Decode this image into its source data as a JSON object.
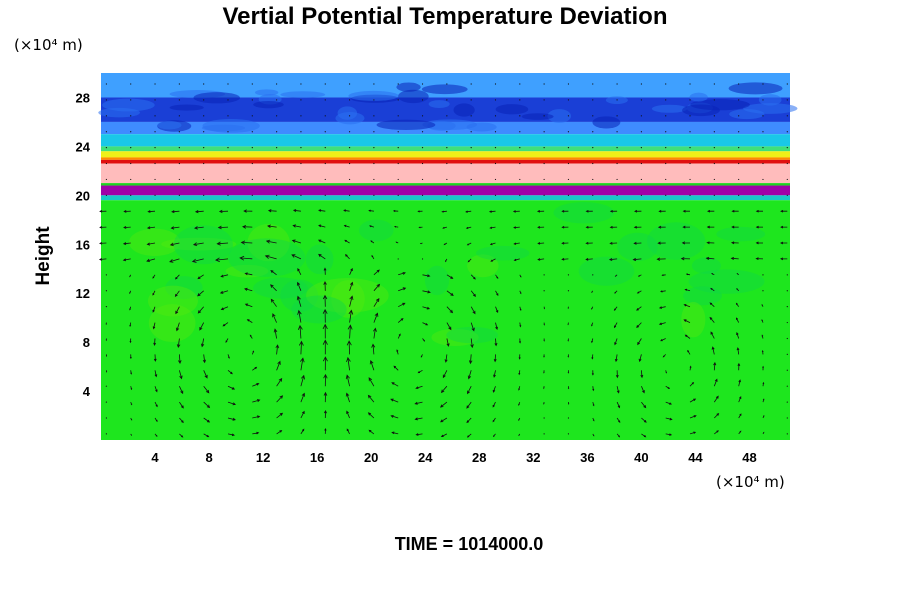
{
  "chart_data": {
    "type": "heatmap",
    "title": "Vertial Potential Temperature Deviation",
    "ylabel": "Height",
    "y_unit": "(×10⁴ m)",
    "x_unit": "(×10⁴ m)",
    "footer": "TIME = 1014000.0",
    "xlim": [
      0,
      51
    ],
    "ylim": [
      0,
      30
    ],
    "x_ticks": [
      4,
      8,
      12,
      16,
      20,
      24,
      28,
      32,
      36,
      40,
      44,
      48
    ],
    "y_ticks": [
      4,
      8,
      12,
      16,
      20,
      24,
      28
    ],
    "layers": [
      {
        "y0": 28.0,
        "y1": 30.0,
        "color": "#3fa0ff"
      },
      {
        "y0": 26.0,
        "y1": 28.0,
        "color": "#1a3fd6"
      },
      {
        "y0": 25.0,
        "y1": 26.0,
        "color": "#3f8cff"
      },
      {
        "y0": 24.0,
        "y1": 25.0,
        "color": "#19c8e8"
      },
      {
        "y0": 23.6,
        "y1": 24.0,
        "color": "#3fe07a"
      },
      {
        "y0": 23.1,
        "y1": 23.6,
        "color": "#f0f018"
      },
      {
        "y0": 22.9,
        "y1": 23.1,
        "color": "#ff8c00"
      },
      {
        "y0": 22.6,
        "y1": 22.9,
        "color": "#e01010"
      },
      {
        "y0": 21.0,
        "y1": 22.6,
        "color": "#ffbcbc"
      },
      {
        "y0": 20.8,
        "y1": 21.0,
        "color": "#20d020"
      },
      {
        "y0": 20.0,
        "y1": 20.8,
        "color": "#a000a8"
      },
      {
        "y0": 19.6,
        "y1": 20.0,
        "color": "#18c8c8"
      },
      {
        "y0": 0.0,
        "y1": 19.6,
        "color": "#1ee61e"
      }
    ],
    "vortices": [
      {
        "cx": 10.5,
        "cy": 7.5,
        "rx": 5.5,
        "ry": 6.5,
        "dir": 1
      },
      {
        "cx": 23.0,
        "cy": 7.5,
        "rx": 5.5,
        "ry": 6.5,
        "dir": -1
      },
      {
        "cx": 42.5,
        "cy": 6.0,
        "rx": 4.5,
        "ry": 5.5,
        "dir": 1
      }
    ],
    "grid": false
  }
}
